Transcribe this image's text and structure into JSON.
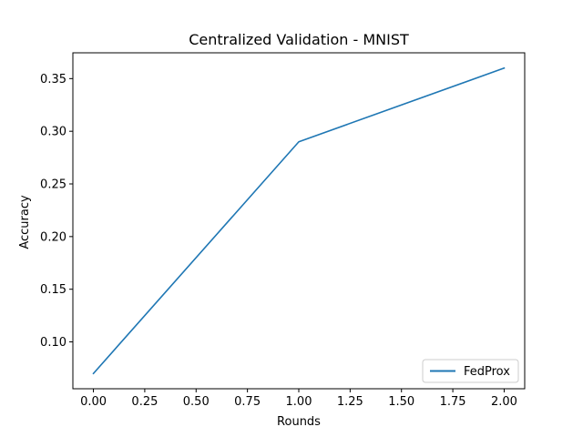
{
  "chart_data": {
    "type": "line",
    "title": "Centralized Validation - MNIST",
    "xlabel": "Rounds",
    "ylabel": "Accuracy",
    "x": [
      0,
      1,
      2
    ],
    "series": [
      {
        "name": "FedProx",
        "values": [
          0.07,
          0.29,
          0.36
        ],
        "color": "#1f77b4"
      }
    ],
    "xlim": [
      -0.1,
      2.1
    ],
    "ylim": [
      0.0555,
      0.3745
    ],
    "xticks": [
      0.0,
      0.25,
      0.5,
      0.75,
      1.0,
      1.25,
      1.5,
      1.75,
      2.0
    ],
    "xtick_labels": [
      "0.00",
      "0.25",
      "0.50",
      "0.75",
      "1.00",
      "1.25",
      "1.50",
      "1.75",
      "2.00"
    ],
    "yticks": [
      0.1,
      0.15,
      0.2,
      0.25,
      0.3,
      0.35
    ],
    "ytick_labels": [
      "0.10",
      "0.15",
      "0.20",
      "0.25",
      "0.30",
      "0.35"
    ],
    "grid": false,
    "legend_position": "lower right"
  }
}
